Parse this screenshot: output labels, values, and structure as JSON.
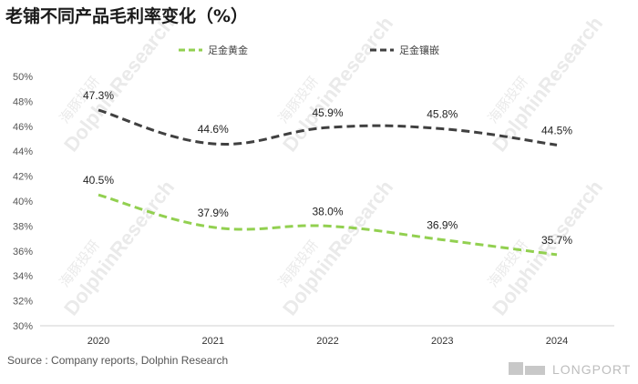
{
  "chart_data": {
    "type": "line",
    "title": "老铺不同产品毛利率变化（%）",
    "x": [
      "2020",
      "2021",
      "2022",
      "2023",
      "2024"
    ],
    "series": [
      {
        "name": "足金黄金",
        "values": [
          40.5,
          37.9,
          38.0,
          36.9,
          35.7
        ],
        "labels": [
          "40.5%",
          "37.9%",
          "38.0%",
          "36.9%",
          "35.7%"
        ],
        "color": "#92d050",
        "dash": "dashed"
      },
      {
        "name": "足金镶嵌",
        "values": [
          47.3,
          44.6,
          45.9,
          45.8,
          44.5
        ],
        "labels": [
          "47.3%",
          "44.6%",
          "45.9%",
          "45.8%",
          "44.5%"
        ],
        "color": "#404040",
        "dash": "dashed"
      }
    ],
    "ylim": [
      30,
      50
    ],
    "yticks": [
      "30%",
      "32%",
      "34%",
      "36%",
      "38%",
      "40%",
      "42%",
      "44%",
      "46%",
      "48%",
      "50%"
    ],
    "grid": false,
    "legend": "top"
  },
  "source": "Source : Company reports, Dolphin Research",
  "watermark": {
    "cn": "海豚投研",
    "en": "DolphinResearch"
  },
  "brand": {
    "logo_text": "LONGPORT"
  }
}
